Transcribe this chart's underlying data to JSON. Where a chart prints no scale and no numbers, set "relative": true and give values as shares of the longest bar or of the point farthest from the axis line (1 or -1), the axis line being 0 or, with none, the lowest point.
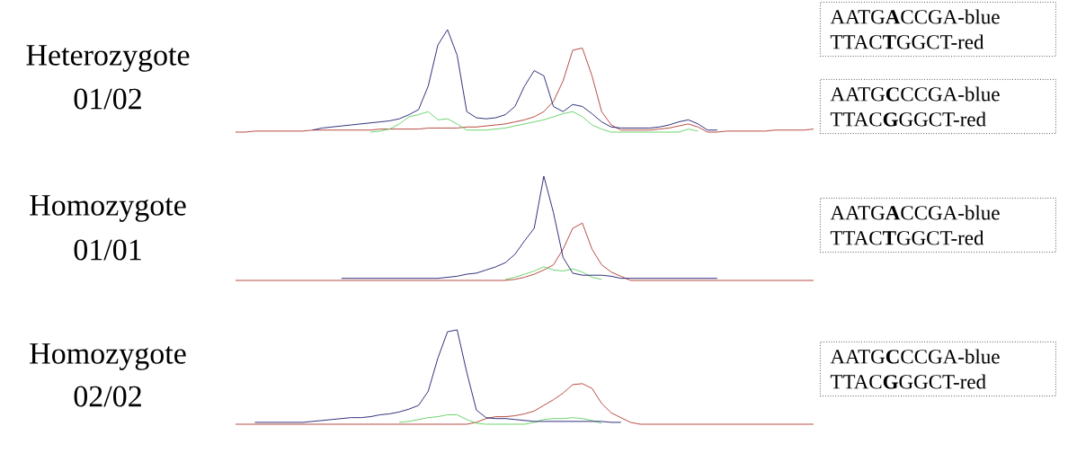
{
  "chart_data": [
    {
      "type": "line",
      "title": "Heterozygote",
      "subtitle": "01/02",
      "relative": true,
      "categories": [
        null,
        null,
        null,
        null,
        null,
        null,
        null,
        null,
        null,
        null,
        null,
        null,
        null,
        null,
        null,
        null,
        null,
        null,
        null,
        null,
        null,
        null,
        null,
        null,
        null,
        null,
        null,
        null,
        null,
        null,
        null,
        null,
        null,
        null,
        null,
        null,
        null,
        null,
        null,
        null,
        null,
        null,
        null,
        null,
        null,
        null,
        null,
        null,
        null,
        null,
        null,
        null,
        null,
        null,
        null,
        null,
        null,
        null,
        null,
        null,
        null
      ],
      "series": [
        {
          "color": "#b03a30",
          "values": [
            0,
            0,
            0.01,
            0.01,
            0.01,
            0.01,
            0.01,
            0.01,
            0.02,
            0.02,
            0.02,
            0.02,
            0.02,
            0.02,
            0.02,
            0.03,
            0.03,
            0.03,
            0.03,
            0.03,
            0.04,
            0.04,
            0.04,
            0.04,
            0.05,
            0.05,
            0.06,
            0.07,
            0.08,
            0.1,
            0.12,
            0.15,
            0.2,
            0.3,
            0.5,
            0.8,
            0.82,
            0.55,
            0.2,
            0.07,
            0.02,
            0.02,
            0.02,
            0.02,
            0.03,
            0.04,
            0.06,
            0.08,
            0.05,
            0,
            0,
            0.01,
            0.01,
            0.01,
            0.01,
            0.01,
            0.02,
            0.02,
            0.02,
            0.02,
            0.03
          ]
        },
        {
          "color": "#5fcf5f",
          "values": [
            null,
            null,
            null,
            null,
            null,
            null,
            null,
            null,
            null,
            null,
            null,
            null,
            null,
            null,
            0,
            0.01,
            0.03,
            0.08,
            0.15,
            0.17,
            0.2,
            0.12,
            0.13,
            0.08,
            0.02,
            0.02,
            0.02,
            0.03,
            0.04,
            0.06,
            0.08,
            0.1,
            0.12,
            0.15,
            0.18,
            0.2,
            0.15,
            0.07,
            0.03,
            0,
            0,
            0,
            0,
            0,
            0,
            0,
            0,
            0.03,
            0.01,
            null,
            null,
            null,
            null,
            null,
            null,
            null,
            null,
            null,
            null,
            null,
            null
          ]
        },
        {
          "color": "#1c1c6e",
          "values": [
            null,
            null,
            null,
            null,
            null,
            null,
            null,
            null,
            0.02,
            0.04,
            0.05,
            0.06,
            0.07,
            0.08,
            0.09,
            0.1,
            0.11,
            0.13,
            0.17,
            0.22,
            0.45,
            0.85,
            1.0,
            0.75,
            0.2,
            0.14,
            0.13,
            0.14,
            0.17,
            0.25,
            0.45,
            0.6,
            0.55,
            0.25,
            0.2,
            0.27,
            0.25,
            0.18,
            0.1,
            0.05,
            0.04,
            0.04,
            0.04,
            0.04,
            0.05,
            0.07,
            0.1,
            0.12,
            0.08,
            0.02,
            0.02,
            null,
            null,
            null,
            null,
            null,
            null,
            null,
            null,
            null,
            null
          ]
        }
      ],
      "annotations": [
        "AATG**A**CCGA-blue",
        "TTAC**T**GGCT-red",
        "AATG**C**CCGA-blue",
        "TTAC**G**GGCT-red"
      ]
    },
    {
      "type": "line",
      "title": "Homozygote",
      "subtitle": "01/01",
      "relative": true,
      "categories": [
        null,
        null,
        null,
        null,
        null,
        null,
        null,
        null,
        null,
        null,
        null,
        null,
        null,
        null,
        null,
        null,
        null,
        null,
        null,
        null,
        null,
        null,
        null,
        null,
        null,
        null,
        null,
        null,
        null,
        null,
        null,
        null,
        null,
        null,
        null,
        null,
        null,
        null,
        null,
        null,
        null,
        null,
        null,
        null,
        null,
        null,
        null,
        null,
        null,
        null,
        null,
        null,
        null,
        null,
        null,
        null,
        null,
        null,
        null,
        null,
        null
      ],
      "series": [
        {
          "color": "#b03a30",
          "values": [
            0,
            0,
            0,
            0,
            0,
            0,
            0,
            0,
            0,
            0,
            0,
            0,
            0,
            0,
            0,
            0,
            0,
            0,
            0,
            0,
            0,
            0,
            0,
            0,
            0,
            0,
            0,
            0,
            0,
            0.01,
            0.03,
            0.06,
            0.1,
            0.15,
            0.3,
            0.5,
            0.55,
            0.3,
            0.15,
            0.08,
            0.04,
            0,
            0,
            0,
            0,
            0,
            0,
            0,
            0,
            0,
            0,
            0,
            0,
            0,
            0,
            0,
            0,
            0,
            0,
            0,
            0
          ]
        },
        {
          "color": "#5fcf5f",
          "values": [
            null,
            null,
            null,
            null,
            null,
            null,
            null,
            null,
            null,
            null,
            null,
            null,
            null,
            null,
            null,
            null,
            null,
            null,
            null,
            null,
            null,
            null,
            null,
            null,
            null,
            null,
            null,
            null,
            0.01,
            0.03,
            0.06,
            0.09,
            0.13,
            0.1,
            0.09,
            0.11,
            0.08,
            0.03,
            0.01,
            null,
            null,
            null,
            null,
            null,
            null,
            null,
            null,
            null,
            null,
            null,
            null,
            null,
            null,
            null,
            null,
            null,
            null,
            null,
            null,
            null,
            null
          ]
        },
        {
          "color": "#1c1c6e",
          "values": [
            null,
            null,
            null,
            null,
            null,
            null,
            null,
            null,
            null,
            null,
            null,
            0.02,
            0.02,
            0.02,
            0.02,
            0.02,
            0.02,
            0.02,
            0.02,
            0.02,
            0.02,
            0.02,
            0.03,
            0.04,
            0.06,
            0.07,
            0.1,
            0.13,
            0.17,
            0.25,
            0.38,
            0.5,
            1.0,
            0.65,
            0.22,
            0.07,
            0.05,
            0.05,
            0.05,
            0.04,
            0.02,
            0.02,
            0.02,
            0.02,
            0.02,
            0.02,
            0.02,
            0.02,
            0.02,
            0.02,
            0.02,
            null,
            null,
            null,
            null,
            null,
            null,
            null,
            null,
            null,
            null
          ]
        }
      ],
      "annotations": [
        "AATG**A**CCGA-blue",
        "TTAC**T**GGCT-red"
      ]
    },
    {
      "type": "line",
      "title": "Homozygote",
      "subtitle": "02/02",
      "relative": true,
      "categories": [
        null,
        null,
        null,
        null,
        null,
        null,
        null,
        null,
        null,
        null,
        null,
        null,
        null,
        null,
        null,
        null,
        null,
        null,
        null,
        null,
        null,
        null,
        null,
        null,
        null,
        null,
        null,
        null,
        null,
        null,
        null,
        null,
        null,
        null,
        null,
        null,
        null,
        null,
        null,
        null,
        null,
        null,
        null,
        null,
        null,
        null,
        null,
        null,
        null,
        null,
        null,
        null,
        null,
        null,
        null,
        null,
        null,
        null,
        null,
        null,
        null
      ],
      "series": [
        {
          "color": "#b03a30",
          "values": [
            0,
            0,
            0,
            0,
            0,
            0,
            0,
            0,
            0,
            0,
            0,
            0,
            0,
            0,
            0,
            0,
            0,
            0,
            0,
            0,
            0,
            0,
            0,
            0,
            0,
            0.02,
            0.06,
            0.08,
            0.08,
            0.09,
            0.11,
            0.14,
            0.2,
            0.26,
            0.33,
            0.42,
            0.43,
            0.38,
            0.22,
            0.12,
            0.07,
            0.02,
            0,
            0,
            0,
            0,
            0,
            0,
            0,
            0,
            0,
            0,
            0,
            0,
            0,
            0,
            0,
            0,
            0,
            0,
            0
          ]
        },
        {
          "color": "#5fcf5f",
          "values": [
            null,
            null,
            null,
            null,
            null,
            null,
            null,
            null,
            null,
            null,
            null,
            null,
            null,
            null,
            null,
            null,
            null,
            0.02,
            0.03,
            0.05,
            0.07,
            0.08,
            0.1,
            0.1,
            0.05,
            0.01,
            0,
            0,
            0,
            0,
            0,
            0.02,
            0.05,
            0.06,
            0.06,
            0.07,
            0.06,
            0.04,
            0.01,
            null,
            null,
            null,
            null,
            null,
            null,
            null,
            null,
            null,
            null,
            null,
            null,
            null,
            null,
            null,
            null,
            null,
            null,
            null,
            null,
            null,
            null
          ]
        },
        {
          "color": "#1c1c6e",
          "values": [
            null,
            null,
            0.02,
            0.02,
            0.02,
            0.02,
            0.02,
            0.02,
            0.03,
            0.04,
            0.05,
            0.06,
            0.07,
            0.07,
            0.08,
            0.1,
            0.11,
            0.13,
            0.16,
            0.2,
            0.35,
            0.7,
            0.98,
            1.0,
            0.55,
            0.15,
            0.07,
            0.06,
            0.06,
            0.05,
            0.04,
            0.03,
            0.03,
            0.03,
            0.03,
            0.03,
            0.03,
            0.03,
            0.03,
            0.02,
            0.02,
            null,
            null,
            null,
            null,
            null,
            null,
            null,
            null,
            null,
            null,
            null,
            null,
            null,
            null,
            null,
            null,
            null,
            null,
            null,
            null
          ]
        }
      ],
      "annotations": [
        "AATG**C**CCGA-blue",
        "TTAC**G**GGCT-red"
      ]
    }
  ]
}
